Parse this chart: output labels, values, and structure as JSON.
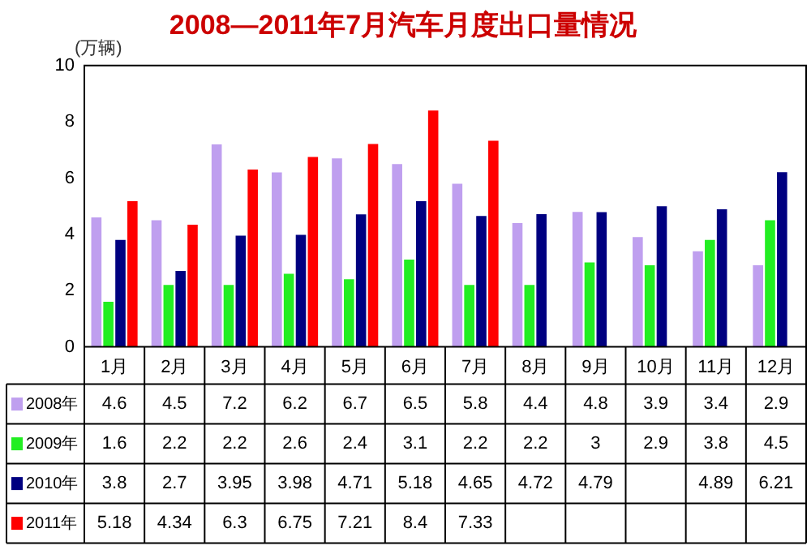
{
  "chart_data": {
    "type": "bar",
    "title": "2008—2011年7月汽车月度出口量情况",
    "ylabel": "(万辆)",
    "categories": [
      "1月",
      "2月",
      "3月",
      "4月",
      "5月",
      "6月",
      "7月",
      "8月",
      "9月",
      "10月",
      "11月",
      "12月"
    ],
    "series": [
      {
        "name": "2008年",
        "color": "#bf9fef",
        "values": [
          4.6,
          4.5,
          7.2,
          6.2,
          6.7,
          6.5,
          5.8,
          4.4,
          4.8,
          3.9,
          3.4,
          2.9
        ]
      },
      {
        "name": "2009年",
        "color": "#22ee22",
        "values": [
          1.6,
          2.2,
          2.2,
          2.6,
          2.4,
          3.1,
          2.2,
          2.2,
          3,
          2.9,
          3.8,
          4.5
        ]
      },
      {
        "name": "2010年",
        "color": "#000080",
        "values": [
          3.8,
          2.7,
          3.95,
          3.98,
          4.71,
          5.18,
          4.65,
          4.72,
          4.79,
          5.0,
          4.89,
          6.21
        ],
        "value_labels": [
          "3.8",
          "2.7",
          "3.95",
          "3.98",
          "4.71",
          "5.18",
          "4.65",
          "4.72",
          "4.79",
          null,
          "4.89",
          "6.21"
        ]
      },
      {
        "name": "2011年",
        "color": "#ff0000",
        "values": [
          5.18,
          4.34,
          6.3,
          6.75,
          7.21,
          8.4,
          7.33,
          null,
          null,
          null,
          null,
          null
        ]
      }
    ],
    "ylim": [
      0,
      10
    ],
    "yticks": [
      0,
      2,
      4,
      6,
      8,
      10
    ],
    "grid": false,
    "legend": "bottom",
    "data_labels": true
  }
}
